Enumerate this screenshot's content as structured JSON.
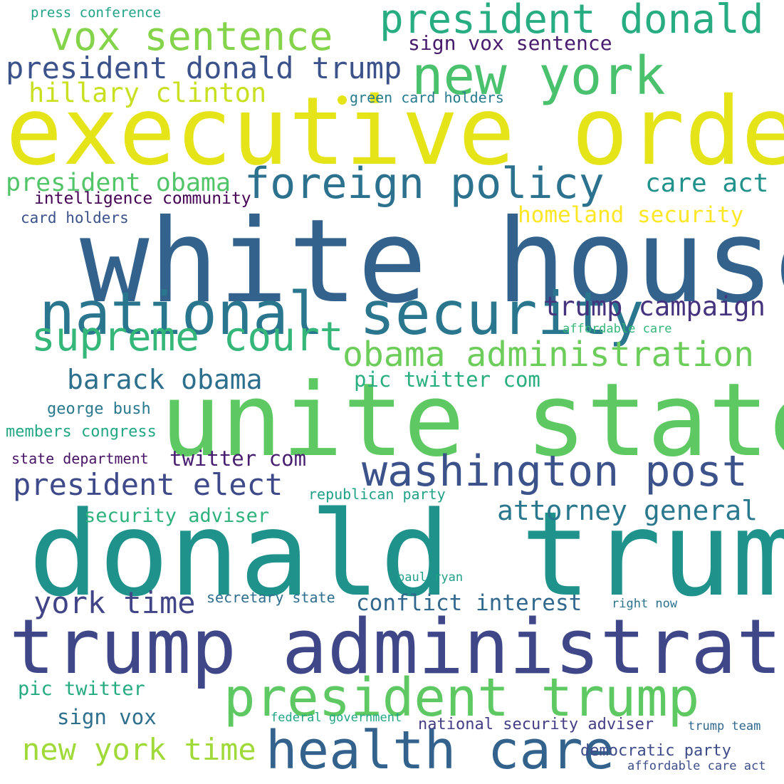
{
  "words": [
    {
      "id": "w01",
      "text": "white house",
      "color": "#33638d"
    },
    {
      "id": "w02",
      "text": "donald trump",
      "color": "#1f928c"
    },
    {
      "id": "w03",
      "text": "unite state",
      "color": "#5ec962"
    },
    {
      "id": "w04",
      "text": "executive order",
      "color": "#e5e419"
    },
    {
      "id": "w05",
      "text": "trump administration",
      "color": "#3f4788"
    },
    {
      "id": "w06",
      "text": "national security",
      "color": "#2a768e"
    },
    {
      "id": "w07",
      "text": "health care",
      "color": "#33638d"
    },
    {
      "id": "w08",
      "text": "president trump",
      "color": "#5ec962"
    },
    {
      "id": "w09",
      "text": "new york",
      "color": "#4ac16d"
    },
    {
      "id": "w10",
      "text": "foreign policy",
      "color": "#2c728e"
    },
    {
      "id": "w11",
      "text": "washington post",
      "color": "#3b528b"
    },
    {
      "id": "w12",
      "text": "supreme court",
      "color": "#35b779"
    },
    {
      "id": "w13",
      "text": "obama administration",
      "color": "#6ccd5a"
    },
    {
      "id": "w14",
      "text": "vox sentence",
      "color": "#84d44b"
    },
    {
      "id": "w15",
      "text": "president donald",
      "color": "#27ad81"
    },
    {
      "id": "w16",
      "text": "president donald trump",
      "color": "#3b528b"
    },
    {
      "id": "w17",
      "text": "president elect",
      "color": "#3e4a89"
    },
    {
      "id": "w18",
      "text": "york time",
      "color": "#414487"
    },
    {
      "id": "w19",
      "text": "new york time",
      "color": "#a0da39"
    },
    {
      "id": "w20",
      "text": "attorney general",
      "color": "#2a788e"
    },
    {
      "id": "w21",
      "text": "barack obama",
      "color": "#2d708e"
    },
    {
      "id": "w22",
      "text": "trump campaign",
      "color": "#46337e"
    },
    {
      "id": "w23",
      "text": "hillary clinton",
      "color": "#c8e020"
    },
    {
      "id": "w24",
      "text": "president obama",
      "color": "#52c569"
    },
    {
      "id": "w25",
      "text": "care act",
      "color": "#21918c"
    },
    {
      "id": "w26",
      "text": "homeland security",
      "color": "#fde725"
    },
    {
      "id": "w27",
      "text": "pic twitter com",
      "color": "#29af7f"
    },
    {
      "id": "w28",
      "text": "twitter com",
      "color": "#481f70"
    },
    {
      "id": "w29",
      "text": "conflict interest",
      "color": "#31688e"
    },
    {
      "id": "w30",
      "text": "sign vox sentence",
      "color": "#481b6d"
    },
    {
      "id": "w31",
      "text": "security adviser",
      "color": "#2db27d"
    },
    {
      "id": "w32",
      "text": "pic twitter",
      "color": "#25ab82"
    },
    {
      "id": "w33",
      "text": "sign vox",
      "color": "#2e6f8e"
    },
    {
      "id": "w34",
      "text": "national security adviser",
      "color": "#433e85"
    },
    {
      "id": "w35",
      "text": "democratic party",
      "color": "#3e4c8a"
    },
    {
      "id": "w36",
      "text": "intelligence community",
      "color": "#440154"
    },
    {
      "id": "w37",
      "text": "card holders",
      "color": "#3b528b"
    },
    {
      "id": "w38",
      "text": "george bush",
      "color": "#2a788e"
    },
    {
      "id": "w39",
      "text": "members congress",
      "color": "#22a785"
    },
    {
      "id": "w40",
      "text": "state department",
      "color": "#471365"
    },
    {
      "id": "w41",
      "text": "republican party",
      "color": "#1fa187"
    },
    {
      "id": "w42",
      "text": "green card holders",
      "color": "#287c8e"
    },
    {
      "id": "w43",
      "text": "press conference",
      "color": "#20a386"
    },
    {
      "id": "w44",
      "text": "affordable care",
      "color": "#35b779"
    },
    {
      "id": "w45",
      "text": "paul ryan",
      "color": "#1fa088"
    },
    {
      "id": "w46",
      "text": "secretary state",
      "color": "#2e6e8e"
    },
    {
      "id": "w47",
      "text": "right now",
      "color": "#2c728e"
    },
    {
      "id": "w48",
      "text": "federal government",
      "color": "#21a685"
    },
    {
      "id": "w49",
      "text": "trump team",
      "color": "#31688e"
    },
    {
      "id": "w50",
      "text": "affordable care act",
      "color": "#3d4e8a"
    }
  ],
  "dot_color": "#e5e419"
}
